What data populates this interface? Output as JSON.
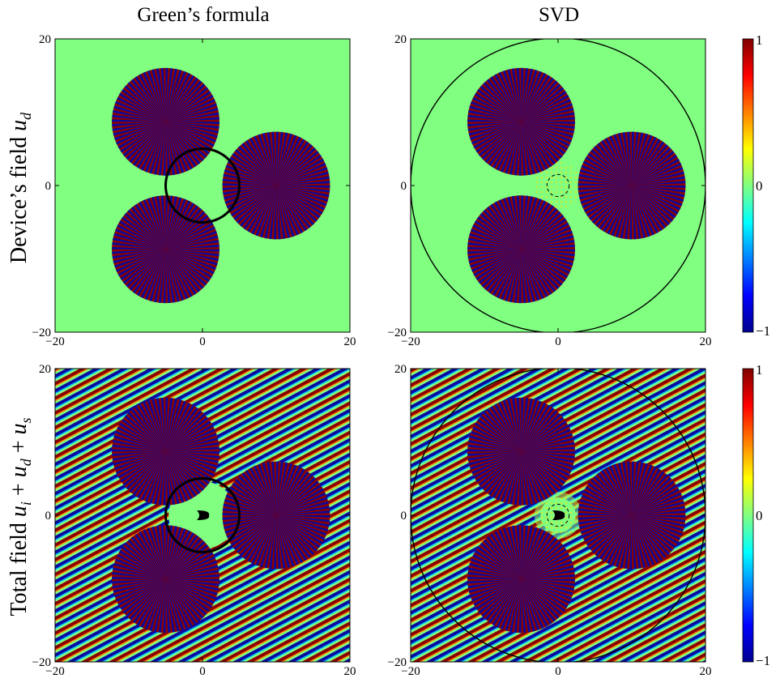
{
  "column_titles": [
    "Green’s formula",
    "SVD"
  ],
  "row_labels": {
    "row1": {
      "prefix": "Device’s field ",
      "var": "u",
      "sub": "d"
    },
    "row2": {
      "prefix": "Total field ",
      "terms": [
        {
          "var": "u",
          "sub": "i"
        },
        {
          "var": "u",
          "sub": "d"
        },
        {
          "var": "u",
          "sub": "s"
        }
      ],
      "joiner": " + "
    }
  },
  "axis_ticks": {
    "x": [
      "−20",
      "0",
      "20"
    ],
    "y": [
      "20",
      "0",
      "−20"
    ]
  },
  "colorbar_ticks": [
    "1",
    "0",
    "−1"
  ],
  "colors": {
    "background_field": "#80ff80",
    "stripe_red": "#8b0000",
    "stripe_blue": "#0a0aa0",
    "colormap": [
      "#00008f",
      "#0000ff",
      "#00ffff",
      "#80ff80",
      "#ffff00",
      "#ff0000",
      "#800000"
    ]
  },
  "chart_data": [
    {
      "type": "heatmap",
      "title": "Green’s formula",
      "ylabel": "Device’s field u_d",
      "xlim": [
        -20,
        20
      ],
      "ylim": [
        -20,
        20
      ],
      "x_ticks": [
        -20,
        0,
        20
      ],
      "y_ticks": [
        -20,
        0,
        20
      ],
      "clim": [
        -1,
        1
      ],
      "sources": [
        {
          "center": [
            -5,
            8.7
          ],
          "radius": 7.3
        },
        {
          "center": [
            10,
            0
          ],
          "radius": 7.3
        },
        {
          "center": [
            -5,
            -8.7
          ],
          "radius": 7.3
        }
      ],
      "control_region": {
        "center": [
          0,
          0
        ],
        "radius": 5
      },
      "incident_waves": false
    },
    {
      "type": "heatmap",
      "title": "SVD",
      "xlim": [
        -20,
        20
      ],
      "ylim": [
        -20,
        20
      ],
      "x_ticks": [
        -20,
        0,
        20
      ],
      "y_ticks": [
        -20,
        0,
        20
      ],
      "clim": [
        -1,
        1
      ],
      "sources": [
        {
          "center": [
            -5,
            8.7
          ],
          "radius": 7.3
        },
        {
          "center": [
            10,
            0
          ],
          "radius": 7.3
        },
        {
          "center": [
            -5,
            -8.7
          ],
          "radius": 7.3
        }
      ],
      "outer_circle": {
        "center": [
          0,
          0
        ],
        "radius": 20
      },
      "control_region": {
        "center": [
          0,
          0
        ],
        "radius": 1.5,
        "dashed": true
      },
      "incident_waves": false
    },
    {
      "type": "heatmap",
      "ylabel": "Total field u_i + u_d + u_s",
      "xlim": [
        -20,
        20
      ],
      "ylim": [
        -20,
        20
      ],
      "x_ticks": [
        -20,
        0,
        20
      ],
      "y_ticks": [
        -20,
        0,
        20
      ],
      "clim": [
        -1,
        1
      ],
      "sources": [
        {
          "center": [
            -5,
            8.7
          ],
          "radius": 7.3
        },
        {
          "center": [
            10,
            0
          ],
          "radius": 7.3
        },
        {
          "center": [
            -5,
            -8.7
          ],
          "radius": 7.3
        }
      ],
      "control_region": {
        "center": [
          0,
          0
        ],
        "radius": 5
      },
      "scatterer": {
        "center": [
          0,
          0
        ]
      },
      "incident_waves": true
    },
    {
      "type": "heatmap",
      "xlim": [
        -20,
        20
      ],
      "ylim": [
        -20,
        20
      ],
      "x_ticks": [
        -20,
        0,
        20
      ],
      "y_ticks": [
        -20,
        0,
        20
      ],
      "clim": [
        -1,
        1
      ],
      "sources": [
        {
          "center": [
            -5,
            8.7
          ],
          "radius": 7.3
        },
        {
          "center": [
            10,
            0
          ],
          "radius": 7.3
        },
        {
          "center": [
            -5,
            -8.7
          ],
          "radius": 7.3
        }
      ],
      "outer_circle": {
        "center": [
          0,
          0
        ],
        "radius": 20
      },
      "control_region": {
        "center": [
          0,
          0
        ],
        "radius": 1.5,
        "dashed": true
      },
      "scatterer": {
        "center": [
          0,
          0
        ]
      },
      "incident_waves": true
    }
  ]
}
